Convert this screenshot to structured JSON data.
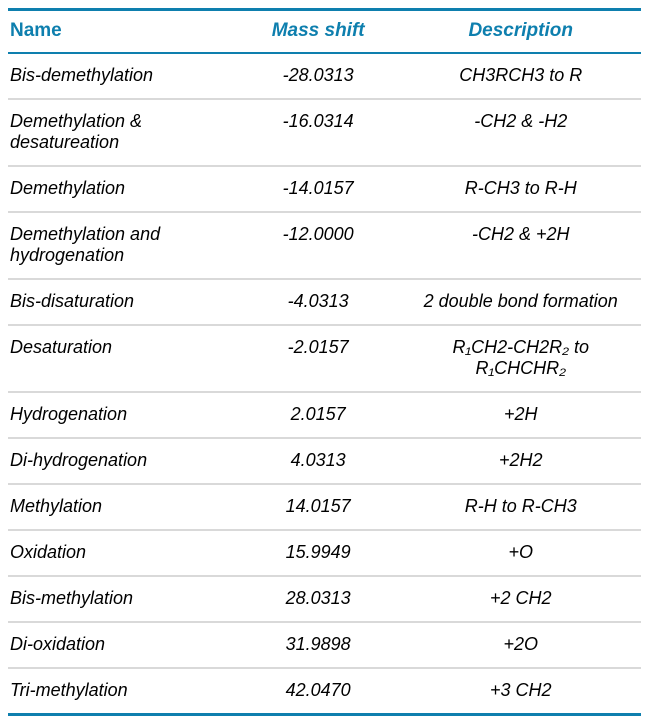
{
  "table": {
    "colors": {
      "accent": "#0e7fae",
      "divider": "#d9d9d9",
      "text": "#000000"
    },
    "columns": [
      {
        "label": "Name"
      },
      {
        "label": "Mass shift"
      },
      {
        "label": "Description"
      }
    ],
    "rows": [
      {
        "name": "Bis-demethylation",
        "mass_shift": "-28.0313",
        "description": "CH3RCH3 to R"
      },
      {
        "name": "Demethylation &\ndesatureation",
        "mass_shift": "-16.0314",
        "description": "-CH2 & -H2"
      },
      {
        "name": "Demethylation",
        "mass_shift": "-14.0157",
        "description": "R-CH3 to R-H"
      },
      {
        "name": "Demethylation and\nhydrogenation",
        "mass_shift": "-12.0000",
        "description": "-CH2 & +2H"
      },
      {
        "name": "Bis-disaturation",
        "mass_shift": "-4.0313",
        "description": "2 double bond formation"
      },
      {
        "name": "Desaturation",
        "mass_shift": "-2.0157",
        "description": "R₁CH2-CH2R₂ to\nR₁CHCHR₂"
      },
      {
        "name": "Hydrogenation",
        "mass_shift": "2.0157",
        "description": "+2H"
      },
      {
        "name": "Di-hydrogenation",
        "mass_shift": "4.0313",
        "description": "+2H2"
      },
      {
        "name": "Methylation",
        "mass_shift": "14.0157",
        "description": "R-H to R-CH3"
      },
      {
        "name": "Oxidation",
        "mass_shift": "15.9949",
        "description": "+O"
      },
      {
        "name": "Bis-methylation",
        "mass_shift": "28.0313",
        "description": "+2 CH2"
      },
      {
        "name": "Di-oxidation",
        "mass_shift": "31.9898",
        "description": "+2O"
      },
      {
        "name": "Tri-methylation",
        "mass_shift": "42.0470",
        "description": "+3 CH2"
      }
    ]
  }
}
